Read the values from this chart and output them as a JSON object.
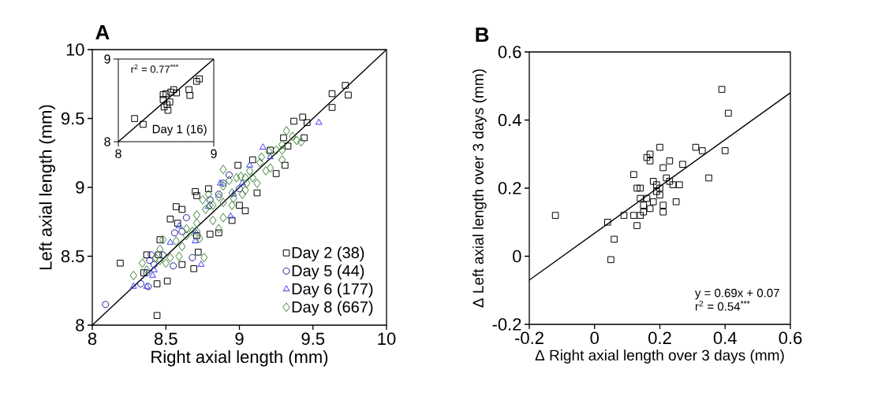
{
  "chart_data": [
    {
      "type": "scatter",
      "title": "A",
      "xlabel": "Right axial length (mm)",
      "ylabel": "Left axial length (mm)",
      "xlim": [
        8,
        10
      ],
      "ylim": [
        8,
        10
      ],
      "xticks": [
        8,
        8.5,
        9,
        9.5,
        10
      ],
      "yticks": [
        8,
        8.5,
        9,
        9.5,
        10
      ],
      "legend": "bottom right",
      "series": [
        {
          "name": "Day 2 (38)",
          "color": "#000000",
          "marker": "square",
          "x": [
            8.19,
            8.44,
            9.72,
            9.63,
            9.74,
            9.63,
            9.37,
            9.43,
            9.46,
            9.44,
            9.3,
            9.33,
            9.31,
            9.25,
            8.99,
            9.09,
            9.12,
            9.04,
            8.79,
            8.7,
            8.71,
            8.57,
            8.61,
            8.53,
            8.58,
            8.46,
            8.71,
            8.8,
            8.37,
            8.45,
            8.72,
            8.61,
            8.69,
            8.35,
            8.44,
            8.51,
            8.95,
            8.86,
            9.0,
            9.21
          ],
          "values": [
            8.45,
            8.07,
            9.74,
            9.68,
            9.67,
            9.58,
            9.48,
            9.51,
            9.47,
            9.36,
            9.36,
            9.3,
            9.16,
            9.1,
            9.16,
            9.2,
            8.96,
            8.83,
            8.99,
            8.97,
            8.94,
            8.86,
            8.84,
            8.77,
            8.74,
            8.62,
            8.65,
            8.66,
            8.51,
            8.51,
            8.53,
            8.44,
            8.41,
            8.38,
            8.3,
            8.32,
            8.76,
            8.67,
            8.87,
            9.27
          ]
        },
        {
          "name": "Day 5 (44)",
          "color": "#1c1c96",
          "marker": "circle",
          "x": [
            8.09,
            8.56,
            8.93,
            8.4,
            8.39,
            8.42,
            8.37,
            8.33,
            8.38,
            8.55,
            8.68,
            8.8,
            8.86,
            9.0,
            8.64,
            8.61,
            8.48,
            8.89
          ],
          "values": [
            8.15,
            8.67,
            9.09,
            8.51,
            8.47,
            8.44,
            8.38,
            8.3,
            8.28,
            8.43,
            8.49,
            8.91,
            8.95,
            8.99,
            8.78,
            8.68,
            8.51,
            9.03
          ]
        },
        {
          "name": "Day 6 (177)",
          "color": "#3c3cf0",
          "marker": "triangle",
          "x": [
            9.54,
            9.16,
            8.94,
            8.74,
            8.28,
            8.37,
            8.42,
            8.53,
            8.7,
            8.7,
            8.87,
            8.96,
            8.79,
            9.07,
            9.21,
            8.41,
            8.59,
            9.02
          ],
          "values": [
            9.47,
            9.29,
            8.79,
            8.44,
            8.28,
            8.28,
            8.4,
            8.6,
            8.61,
            8.68,
            9.03,
            8.95,
            8.86,
            9.16,
            9.22,
            8.36,
            8.72,
            9.03
          ]
        },
        {
          "name": "Day 8 (667)",
          "color": "#3b8232",
          "marker": "diamond",
          "x": [
            8.28,
            8.34,
            8.46,
            8.48,
            8.5,
            8.53,
            8.59,
            8.61,
            8.64,
            8.68,
            8.71,
            8.76,
            8.73,
            8.64,
            8.71,
            8.77,
            8.8,
            8.86,
            8.89,
            8.93,
            8.89,
            8.86,
            8.82,
            8.89,
            8.95,
            8.96,
            9.02,
            9.04,
            9.05,
            9.01,
            9.07,
            9.12,
            9.14,
            9.18,
            9.21,
            9.15,
            9.2,
            9.25,
            9.29,
            9.29,
            9.29,
            9.32,
            9.39,
            9.42,
            9.36,
            8.79,
            8.75,
            9.04,
            8.95,
            8.71,
            8.57,
            8.43,
            9.09,
            8.46,
            8.37,
            8.98,
            8.82,
            8.89
          ],
          "values": [
            8.36,
            8.45,
            8.55,
            8.62,
            8.45,
            8.49,
            8.5,
            8.57,
            8.65,
            8.68,
            8.68,
            8.49,
            8.63,
            8.7,
            8.8,
            8.84,
            8.87,
            8.93,
            9.01,
            9.05,
            9.13,
            8.7,
            8.76,
            8.78,
            8.87,
            8.92,
            8.95,
            8.98,
            9.03,
            9.08,
            9.12,
            9.03,
            9.18,
            9.12,
            9.14,
            9.22,
            9.26,
            9.27,
            9.27,
            9.2,
            9.31,
            9.41,
            9.34,
            9.33,
            9.37,
            8.95,
            8.91,
            9.07,
            8.96,
            8.74,
            8.61,
            8.49,
            9.07,
            8.47,
            8.4,
            9.07,
            8.87,
            8.89
          ]
        },
        {
          "type": "line",
          "color": "#000000",
          "marker": "none",
          "x": [
            8,
            10
          ],
          "values": [
            8,
            10
          ]
        }
      ]
    },
    {
      "type": "scatter",
      "xlim": [
        8,
        9
      ],
      "ylim": [
        8,
        9
      ],
      "xticks": [
        8,
        9
      ],
      "yticks": [
        8,
        9
      ],
      "annotations": [
        "r$^{2}$ = 0.77$^{***}$"
      ],
      "series": [
        {
          "name": "Day 1 (16)",
          "color": "#000000",
          "marker": "square",
          "x": [
            8.17,
            8.26,
            8.47,
            8.5,
            8.47,
            8.48,
            8.52,
            8.51,
            8.54,
            8.58,
            8.61,
            8.74,
            8.75,
            8.82,
            8.85,
            8.55
          ],
          "values": [
            8.28,
            8.21,
            8.57,
            8.58,
            8.51,
            8.42,
            8.38,
            8.45,
            8.48,
            8.63,
            8.59,
            8.63,
            8.56,
            8.73,
            8.76,
            8.6
          ]
        },
        {
          "type": "line",
          "color": "#000000",
          "marker": "none",
          "x": [
            8,
            9
          ],
          "values": [
            8,
            9
          ]
        }
      ]
    },
    {
      "type": "scatter",
      "title": "B",
      "xlabel": "Δ Right axial length over 3 days (mm)",
      "ylabel": "Δ Left axial length over 3 days (mm)",
      "xlim": [
        -0.2,
        0.6
      ],
      "ylim": [
        -0.2,
        0.6
      ],
      "xticks": [
        -0.2,
        0,
        0.2,
        0.4,
        0.6
      ],
      "yticks": [
        -0.2,
        0,
        0.2,
        0.4,
        0.6
      ],
      "annotations": [
        "y = 0.69x + 0.07",
        "r$^{2}$ = 0.54$^{***}$"
      ],
      "series": [
        {
          "color": "#000000",
          "marker": "square",
          "x": [
            -0.12,
            0.04,
            0.06,
            0.05,
            0.09,
            0.12,
            0.13,
            0.12,
            0.13,
            0.14,
            0.14,
            0.15,
            0.15,
            0.14,
            0.16,
            0.17,
            0.16,
            0.17,
            0.17,
            0.18,
            0.18,
            0.19,
            0.19,
            0.2,
            0.2,
            0.2,
            0.21,
            0.21,
            0.21,
            0.22,
            0.23,
            0.23,
            0.24,
            0.25,
            0.26,
            0.27,
            0.31,
            0.33,
            0.35,
            0.39,
            0.41,
            0.4
          ],
          "values": [
            0.12,
            0.1,
            0.05,
            -0.01,
            0.12,
            0.24,
            0.2,
            0.12,
            0.09,
            0.2,
            0.17,
            0.15,
            0.13,
            0.12,
            0.17,
            0.14,
            0.29,
            0.28,
            0.3,
            0.22,
            0.16,
            0.21,
            0.19,
            0.32,
            0.2,
            0.18,
            0.15,
            0.13,
            0.26,
            0.23,
            0.22,
            0.28,
            0.21,
            0.16,
            0.21,
            0.27,
            0.32,
            0.31,
            0.23,
            0.49,
            0.42,
            0.31
          ]
        },
        {
          "type": "line",
          "color": "#000000",
          "marker": "none",
          "x": [
            -0.2,
            0.6
          ],
          "values": [
            -0.07,
            0.48
          ]
        }
      ]
    }
  ]
}
